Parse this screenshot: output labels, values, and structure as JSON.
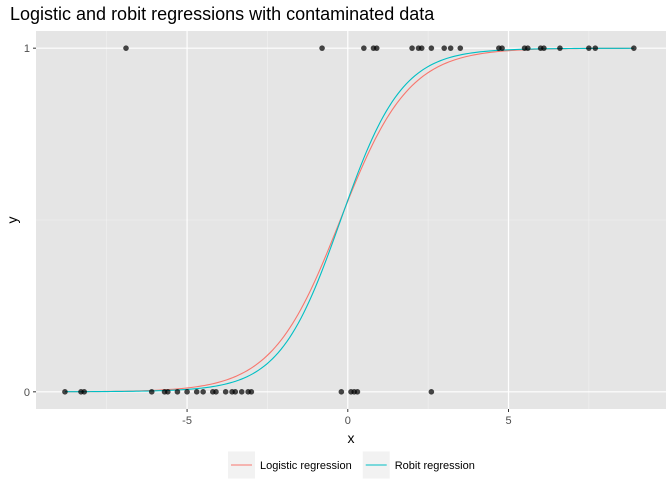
{
  "chart_data": {
    "type": "scatter",
    "title": "Logistic and robit regressions with contaminated data",
    "xlabel": "x",
    "ylabel": "y",
    "xlim": [
      -9.7,
      9.9
    ],
    "ylim": [
      -0.05,
      1.05
    ],
    "x_ticks": [
      -5,
      0,
      5
    ],
    "x_tick_labels": [
      "-5",
      "0",
      "5"
    ],
    "y_ticks": [
      0,
      1
    ],
    "y_tick_labels": [
      "0",
      "1"
    ],
    "panel_background": "#e5e5e5",
    "grid": true,
    "legend_position": "bottom",
    "points": [
      {
        "x": -8.8,
        "y": 0
      },
      {
        "x": -8.3,
        "y": 0
      },
      {
        "x": -8.2,
        "y": 0
      },
      {
        "x": -6.9,
        "y": 1
      },
      {
        "x": -6.1,
        "y": 0
      },
      {
        "x": -5.7,
        "y": 0
      },
      {
        "x": -5.6,
        "y": 0
      },
      {
        "x": -5.3,
        "y": 0
      },
      {
        "x": -5.0,
        "y": 0
      },
      {
        "x": -4.7,
        "y": 0
      },
      {
        "x": -4.5,
        "y": 0
      },
      {
        "x": -4.2,
        "y": 0
      },
      {
        "x": -4.1,
        "y": 0
      },
      {
        "x": -3.8,
        "y": 0
      },
      {
        "x": -3.6,
        "y": 0
      },
      {
        "x": -3.5,
        "y": 0
      },
      {
        "x": -3.3,
        "y": 0
      },
      {
        "x": -3.1,
        "y": 0
      },
      {
        "x": -3.0,
        "y": 0
      },
      {
        "x": -0.8,
        "y": 1
      },
      {
        "x": -0.2,
        "y": 0
      },
      {
        "x": 0.1,
        "y": 0
      },
      {
        "x": 0.2,
        "y": 0
      },
      {
        "x": 0.3,
        "y": 0
      },
      {
        "x": 0.5,
        "y": 1
      },
      {
        "x": 0.8,
        "y": 1
      },
      {
        "x": 0.9,
        "y": 1
      },
      {
        "x": 2.0,
        "y": 1
      },
      {
        "x": 2.2,
        "y": 1
      },
      {
        "x": 2.3,
        "y": 1
      },
      {
        "x": 2.6,
        "y": 1
      },
      {
        "x": 2.6,
        "y": 0
      },
      {
        "x": 3.0,
        "y": 1
      },
      {
        "x": 3.2,
        "y": 1
      },
      {
        "x": 3.5,
        "y": 1
      },
      {
        "x": 4.7,
        "y": 1
      },
      {
        "x": 4.8,
        "y": 1
      },
      {
        "x": 5.5,
        "y": 1
      },
      {
        "x": 5.6,
        "y": 1
      },
      {
        "x": 6.0,
        "y": 1
      },
      {
        "x": 6.1,
        "y": 1
      },
      {
        "x": 6.6,
        "y": 1
      },
      {
        "x": 7.5,
        "y": 1
      },
      {
        "x": 7.7,
        "y": 1
      },
      {
        "x": 8.9,
        "y": 1
      }
    ],
    "series": [
      {
        "name": "Logistic regression",
        "color": "#f8766d",
        "curve": "logistic",
        "intercept": 0.22,
        "slope": 0.94
      },
      {
        "name": "Robit regression",
        "color": "#00bfc4",
        "curve": "robit",
        "intercept": 0.15,
        "slope": 0.68
      }
    ]
  }
}
